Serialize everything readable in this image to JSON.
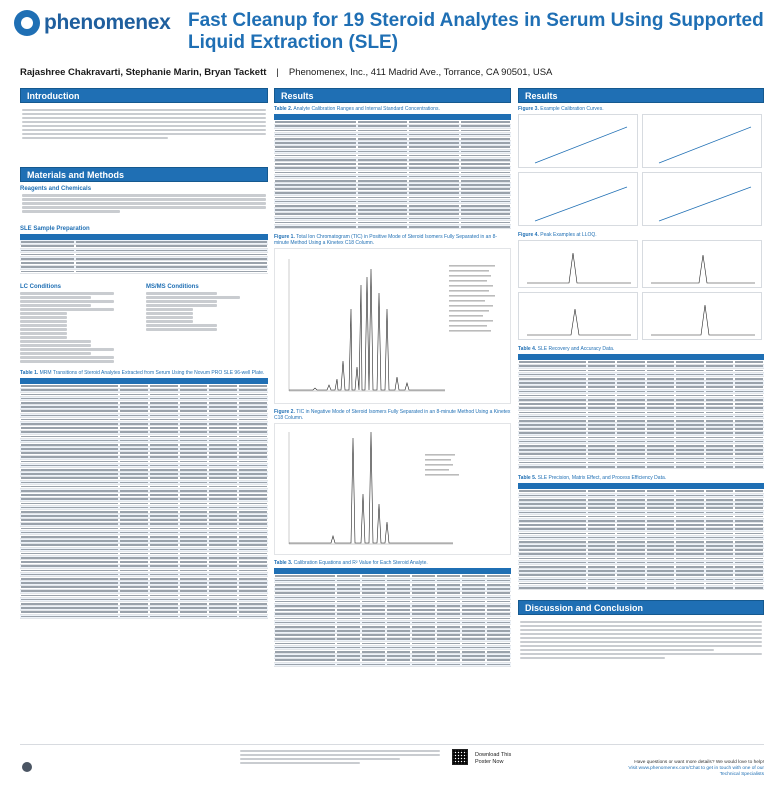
{
  "brand": {
    "name": "phenomenex",
    "accent": "#1f6fb4"
  },
  "header": {
    "title": "Fast Cleanup for 19 Steroid Analytes in Serum Using Supported Liquid Extraction (SLE)",
    "authors": "Rajashree Chakravarti, Stephanie Marin, Bryan Tackett",
    "affiliation": "Phenomenex, Inc., 411 Madrid Ave., Torrance, CA 90501, USA"
  },
  "col1": {
    "intro_title": "Introduction",
    "materials_title": "Materials and Methods",
    "reagents_title": "Reagents and Chemicals",
    "sle_prep_title": "SLE Sample Preparation",
    "lc_title": "LC Conditions",
    "msms_title": "MS/MS Conditions",
    "table1_caption_bold": "Table 1.",
    "table1_caption": "MRM Transitions of Steroid Analytes Extracted from Serum Using the Novum PRO SLE 96-well Plate."
  },
  "col2": {
    "results_title": "Results",
    "table2_caption_bold": "Table 2.",
    "table2_caption": "Analyte Calibration Ranges and Internal Standard Concentrations.",
    "fig1_caption_bold": "Figure 1.",
    "fig1_caption": "Total Ion Chromatogram (TIC) in Positive Mode of Steroid Isomers Fully Separated in an 8-minute Method Using a Kinetex C18 Column.",
    "fig2_caption_bold": "Figure 2.",
    "fig2_caption": "TIC in Negative Mode of Steroid Isomers Fully Separated in an 8-minute Method Using a Kinetex C18 Column.",
    "table3_caption_bold": "Table 3.",
    "table3_caption": "Calibration Equations and R² Value for Each Steroid Analyte."
  },
  "col3": {
    "results_title": "Results",
    "fig3_caption_bold": "Figure 3.",
    "fig3_caption": "Example Calibration Curves.",
    "fig4_caption_bold": "Figure 4.",
    "fig4_caption": "Peak Examples at LLOQ.",
    "table4_caption_bold": "Table 4.",
    "table4_caption": "SLE Recovery and Accuracy Data.",
    "table5_caption_bold": "Table 5.",
    "table5_caption": "SLE Precision, Matrix Effect, and Process Efficiency Data.",
    "discussion_title": "Discussion and Conclusion"
  },
  "footer": {
    "download": "Download This Poster Now",
    "help_line1": "Have questions or want more details? We would love to help!",
    "help_line2": "Visit www.phenomenex.com/Chat to get in touch with one of our Technical Specialists"
  }
}
